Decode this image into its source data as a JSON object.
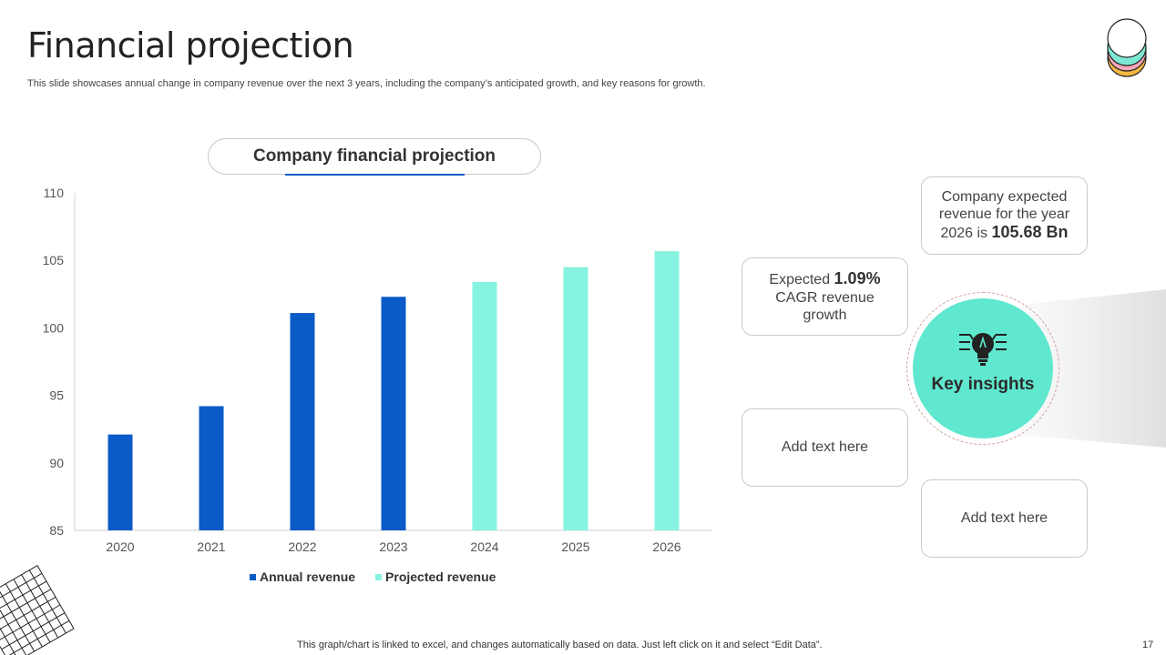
{
  "page": {
    "title": "Financial projection",
    "subtitle": "This slide showcases annual change in company revenue over the next 3 years, including the company’s anticipated growth, and key reasons for growth.",
    "footer": "This graph/chart is linked to excel,  and changes automatically based on data. Just left click on it and select “Edit Data”.",
    "page_number": "17"
  },
  "chart_data": {
    "type": "bar",
    "title": "Company financial projection",
    "categories": [
      "2020",
      "2021",
      "2022",
      "2023",
      "2024",
      "2025",
      "2026"
    ],
    "series": [
      {
        "name": "Annual revenue",
        "values": [
          92.1,
          94.2,
          101.1,
          102.3,
          null,
          null,
          null
        ],
        "color": "#0a5bc8"
      },
      {
        "name": "Projected revenue",
        "values": [
          null,
          null,
          null,
          null,
          103.4,
          104.5,
          105.68
        ],
        "color": "#86f3e0"
      }
    ],
    "ylim": [
      85,
      110
    ],
    "yticks": [
      85,
      90,
      95,
      100,
      105,
      110
    ],
    "grid": false,
    "legend": "bottom"
  },
  "insights": {
    "center_label": "Key insights",
    "expected_revenue": {
      "prefix": "Company expected revenue for the year 2026 is ",
      "value": "105.68 Bn"
    },
    "cagr": {
      "prefix": "Expected ",
      "value": "1.09%",
      "suffix": " CAGR revenue growth"
    },
    "placeholder_1": "Add text here",
    "placeholder_2": "Add text here"
  },
  "colors": {
    "actual": "#0a5bc8",
    "projected": "#86f3e0",
    "accent": "#5fe8cf"
  },
  "icons": [
    "lightbulb-icon",
    "stacked-layers-icon",
    "grid-decoration"
  ]
}
